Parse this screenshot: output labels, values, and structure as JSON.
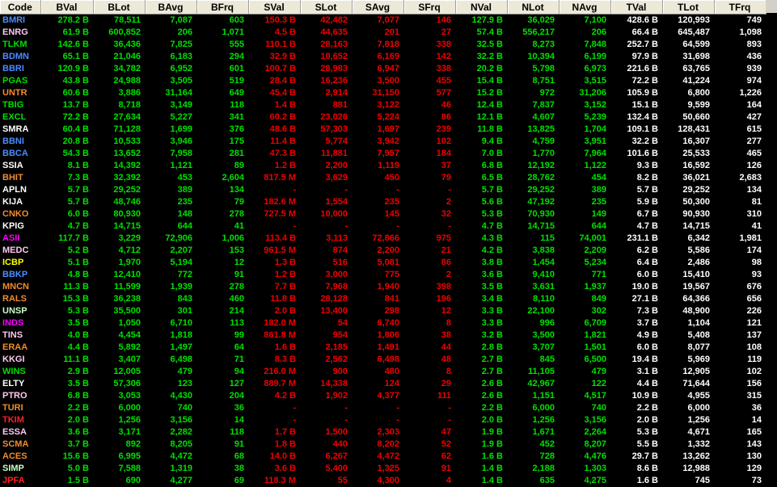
{
  "columns": [
    "Code",
    "BVal",
    "BLot",
    "BAvg",
    "BFrq",
    "SVal",
    "SLot",
    "SAvg",
    "SFrq",
    "NVal",
    "NLot",
    "NAvg",
    "TVal",
    "TLot",
    "TFrq"
  ],
  "colors": {
    "buy": "#00e000",
    "sell": "#f00000",
    "total": "#ffffff",
    "header_bg": "#ece9d8",
    "background": "#000000"
  },
  "rows": [
    {
      "code": "BMRI",
      "code_color": "#4a8cff",
      "v": [
        "278.2 B",
        "78,511",
        "7,087",
        "603",
        "150.3 B",
        "42,482",
        "7,077",
        "146",
        "127.9 B",
        "36,029",
        "7,100",
        "428.6 B",
        "120,993",
        "749"
      ]
    },
    {
      "code": "ENRG",
      "code_color": "#ffc8f0",
      "v": [
        "61.9 B",
        "600,852",
        "206",
        "1,071",
        "4.5 B",
        "44,635",
        "201",
        "27",
        "57.4 B",
        "556,217",
        "206",
        "66.4 B",
        "645,487",
        "1,098"
      ]
    },
    {
      "code": "TLKM",
      "code_color": "#00e000",
      "v": [
        "142.6 B",
        "36,436",
        "7,825",
        "555",
        "110.1 B",
        "28,163",
        "7,818",
        "338",
        "32.5 B",
        "8,273",
        "7,848",
        "252.7 B",
        "64,599",
        "893"
      ]
    },
    {
      "code": "BDMN",
      "code_color": "#4a8cff",
      "v": [
        "65.1 B",
        "21,046",
        "6,183",
        "294",
        "32.9 B",
        "10,652",
        "6,169",
        "142",
        "32.2 B",
        "10,394",
        "6,199",
        "97.9 B",
        "31,698",
        "436"
      ]
    },
    {
      "code": "BBRI",
      "code_color": "#4a8cff",
      "v": [
        "120.9 B",
        "34,782",
        "6,952",
        "601",
        "100.7 B",
        "28,983",
        "6,947",
        "338",
        "20.2 B",
        "5,798",
        "6,973",
        "221.6 B",
        "63,765",
        "939"
      ]
    },
    {
      "code": "PGAS",
      "code_color": "#00e000",
      "v": [
        "43.8 B",
        "24,988",
        "3,505",
        "519",
        "28.4 B",
        "16,236",
        "3,500",
        "455",
        "15.4 B",
        "8,751",
        "3,515",
        "72.2 B",
        "41,224",
        "974"
      ]
    },
    {
      "code": "UNTR",
      "code_color": "#f08c30",
      "v": [
        "60.6 B",
        "3,886",
        "31,164",
        "649",
        "45.4 B",
        "2,914",
        "31,150",
        "577",
        "15.2 B",
        "972",
        "31,206",
        "105.9 B",
        "6,800",
        "1,226"
      ]
    },
    {
      "code": "TBIG",
      "code_color": "#00e000",
      "v": [
        "13.7 B",
        "8,718",
        "3,149",
        "118",
        "1.4 B",
        "881",
        "3,122",
        "46",
        "12.4 B",
        "7,837",
        "3,152",
        "15.1 B",
        "9,599",
        "164"
      ]
    },
    {
      "code": "EXCL",
      "code_color": "#00e000",
      "v": [
        "72.2 B",
        "27,634",
        "5,227",
        "341",
        "60.2 B",
        "23,026",
        "5,224",
        "86",
        "12.1 B",
        "4,607",
        "5,239",
        "132.4 B",
        "50,660",
        "427"
      ]
    },
    {
      "code": "SMRA",
      "code_color": "#ffffff",
      "v": [
        "60.4 B",
        "71,128",
        "1,699",
        "376",
        "48.6 B",
        "57,303",
        "1,697",
        "239",
        "11.8 B",
        "13,825",
        "1,704",
        "109.1 B",
        "128,431",
        "615"
      ]
    },
    {
      "code": "BBNI",
      "code_color": "#4a8cff",
      "v": [
        "20.8 B",
        "10,533",
        "3,946",
        "175",
        "11.4 B",
        "5,774",
        "3,942",
        "102",
        "9.4 B",
        "4,759",
        "3,951",
        "32.2 B",
        "16,307",
        "277"
      ]
    },
    {
      "code": "BBCA",
      "code_color": "#4a8cff",
      "v": [
        "54.3 B",
        "13,652",
        "7,958",
        "281",
        "47.3 B",
        "11,881",
        "7,957",
        "184",
        "7.0 B",
        "1,770",
        "7,964",
        "101.6 B",
        "25,533",
        "465"
      ]
    },
    {
      "code": "SSIA",
      "code_color": "#ffffff",
      "v": [
        "8.1 B",
        "14,392",
        "1,121",
        "89",
        "1.2 B",
        "2,200",
        "1,119",
        "37",
        "6.8 B",
        "12,192",
        "1,122",
        "9.3 B",
        "16,592",
        "126"
      ]
    },
    {
      "code": "BHIT",
      "code_color": "#f08c30",
      "v": [
        "7.3 B",
        "32,392",
        "453",
        "2,604",
        "817.5 M",
        "3,629",
        "450",
        "79",
        "6.5 B",
        "28,762",
        "454",
        "8.2 B",
        "36,021",
        "2,683"
      ]
    },
    {
      "code": "APLN",
      "code_color": "#ffffff",
      "v": [
        "5.7 B",
        "29,252",
        "389",
        "134",
        "-",
        "-",
        "-",
        "-",
        "5.7 B",
        "29,252",
        "389",
        "5.7 B",
        "29,252",
        "134"
      ]
    },
    {
      "code": "KIJA",
      "code_color": "#ffffff",
      "v": [
        "5.7 B",
        "48,746",
        "235",
        "79",
        "182.6 M",
        "1,554",
        "235",
        "2",
        "5.6 B",
        "47,192",
        "235",
        "5.9 B",
        "50,300",
        "81"
      ]
    },
    {
      "code": "CNKO",
      "code_color": "#f08c30",
      "v": [
        "6.0 B",
        "80,930",
        "148",
        "278",
        "727.5 M",
        "10,000",
        "145",
        "32",
        "5.3 B",
        "70,930",
        "149",
        "6.7 B",
        "90,930",
        "310"
      ]
    },
    {
      "code": "KPIG",
      "code_color": "#ffffff",
      "v": [
        "4.7 B",
        "14,715",
        "644",
        "41",
        "-",
        "-",
        "-",
        "-",
        "4.7 B",
        "14,715",
        "644",
        "4.7 B",
        "14,715",
        "41"
      ]
    },
    {
      "code": "ASII",
      "code_color": "#ff00ff",
      "v": [
        "117.7 B",
        "3,229",
        "72,906",
        "1,006",
        "113.4 B",
        "3,113",
        "72,866",
        "975",
        "4.3 B",
        "115",
        "74,001",
        "231.1 B",
        "6,342",
        "1,981"
      ]
    },
    {
      "code": "MEDC",
      "code_color": "#ffc8f0",
      "v": [
        "5.2 B",
        "4,712",
        "2,207",
        "153",
        "961.5 M",
        "874",
        "2,200",
        "21",
        "4.2 B",
        "3,838",
        "2,209",
        "6.2 B",
        "5,586",
        "174"
      ]
    },
    {
      "code": "ICBP",
      "code_color": "#ffff00",
      "v": [
        "5.1 B",
        "1,970",
        "5,194",
        "12",
        "1.3 B",
        "516",
        "5,081",
        "86",
        "3.8 B",
        "1,454",
        "5,234",
        "6.4 B",
        "2,486",
        "98"
      ]
    },
    {
      "code": "BBKP",
      "code_color": "#4a8cff",
      "v": [
        "4.8 B",
        "12,410",
        "772",
        "91",
        "1.2 B",
        "3,000",
        "775",
        "2",
        "3.6 B",
        "9,410",
        "771",
        "6.0 B",
        "15,410",
        "93"
      ]
    },
    {
      "code": "MNCN",
      "code_color": "#f08c30",
      "v": [
        "11.3 B",
        "11,599",
        "1,939",
        "278",
        "7.7 B",
        "7,968",
        "1,940",
        "398",
        "3.5 B",
        "3,631",
        "1,937",
        "19.0 B",
        "19,567",
        "676"
      ]
    },
    {
      "code": "RALS",
      "code_color": "#f08c30",
      "v": [
        "15.3 B",
        "36,238",
        "843",
        "460",
        "11.8 B",
        "28,128",
        "841",
        "196",
        "3.4 B",
        "8,110",
        "849",
        "27.1 B",
        "64,366",
        "656"
      ]
    },
    {
      "code": "UNSP",
      "code_color": "#c8ffc8",
      "v": [
        "5.3 B",
        "35,500",
        "301",
        "214",
        "2.0 B",
        "13,400",
        "298",
        "12",
        "3.3 B",
        "22,100",
        "302",
        "7.3 B",
        "48,900",
        "226"
      ]
    },
    {
      "code": "INDS",
      "code_color": "#ff00ff",
      "v": [
        "3.5 B",
        "1,050",
        "6,710",
        "113",
        "182.0 M",
        "54",
        "6,740",
        "8",
        "3.3 B",
        "996",
        "6,709",
        "3.7 B",
        "1,104",
        "121"
      ]
    },
    {
      "code": "TINS",
      "code_color": "#ffc8f0",
      "v": [
        "4.0 B",
        "4,454",
        "1,818",
        "99",
        "861.8 M",
        "954",
        "1,806",
        "38",
        "3.2 B",
        "3,500",
        "1,821",
        "4.9 B",
        "5,408",
        "137"
      ]
    },
    {
      "code": "ERAA",
      "code_color": "#f08c30",
      "v": [
        "4.4 B",
        "5,892",
        "1,497",
        "64",
        "1.6 B",
        "2,185",
        "1,491",
        "44",
        "2.8 B",
        "3,707",
        "1,501",
        "6.0 B",
        "8,077",
        "108"
      ]
    },
    {
      "code": "KKGI",
      "code_color": "#ffc8f0",
      "v": [
        "11.1 B",
        "3,407",
        "6,498",
        "71",
        "8.3 B",
        "2,562",
        "6,498",
        "48",
        "2.7 B",
        "845",
        "6,500",
        "19.4 B",
        "5,969",
        "119"
      ]
    },
    {
      "code": "WINS",
      "code_color": "#00e000",
      "v": [
        "2.9 B",
        "12,005",
        "479",
        "94",
        "216.0 M",
        "900",
        "480",
        "8",
        "2.7 B",
        "11,105",
        "479",
        "3.1 B",
        "12,905",
        "102"
      ]
    },
    {
      "code": "ELTY",
      "code_color": "#ffffff",
      "v": [
        "3.5 B",
        "57,306",
        "123",
        "127",
        "889.7 M",
        "14,338",
        "124",
        "29",
        "2.6 B",
        "42,967",
        "122",
        "4.4 B",
        "71,644",
        "156"
      ]
    },
    {
      "code": "PTRO",
      "code_color": "#ffc8f0",
      "v": [
        "6.8 B",
        "3,053",
        "4,430",
        "204",
        "4.2 B",
        "1,902",
        "4,377",
        "111",
        "2.6 B",
        "1,151",
        "4,517",
        "10.9 B",
        "4,955",
        "315"
      ]
    },
    {
      "code": "TURI",
      "code_color": "#f08c30",
      "v": [
        "2.2 B",
        "6,000",
        "740",
        "36",
        "-",
        "-",
        "-",
        "-",
        "2.2 B",
        "6,000",
        "740",
        "2.2 B",
        "6,000",
        "36"
      ]
    },
    {
      "code": "TKIM",
      "code_color": "#ff2020",
      "v": [
        "2.0 B",
        "1,256",
        "3,156",
        "14",
        "-",
        "-",
        "-",
        "-",
        "2.0 B",
        "1,256",
        "3,156",
        "2.0 B",
        "1,256",
        "14"
      ]
    },
    {
      "code": "ESSA",
      "code_color": "#ffc8f0",
      "v": [
        "3.6 B",
        "3,171",
        "2,282",
        "118",
        "1.7 B",
        "1,500",
        "2,303",
        "47",
        "1.9 B",
        "1,671",
        "2,264",
        "5.3 B",
        "4,671",
        "165"
      ]
    },
    {
      "code": "SCMA",
      "code_color": "#f08c30",
      "v": [
        "3.7 B",
        "892",
        "8,205",
        "91",
        "1.8 B",
        "440",
        "8,202",
        "52",
        "1.9 B",
        "452",
        "8,207",
        "5.5 B",
        "1,332",
        "143"
      ]
    },
    {
      "code": "ACES",
      "code_color": "#f08c30",
      "v": [
        "15.6 B",
        "6,995",
        "4,472",
        "68",
        "14.0 B",
        "6,267",
        "4,472",
        "62",
        "1.6 B",
        "728",
        "4,476",
        "29.7 B",
        "13,262",
        "130"
      ]
    },
    {
      "code": "SIMP",
      "code_color": "#c8ffc8",
      "v": [
        "5.0 B",
        "7,588",
        "1,319",
        "38",
        "3.6 B",
        "5,400",
        "1,325",
        "91",
        "1.4 B",
        "2,188",
        "1,303",
        "8.6 B",
        "12,988",
        "129"
      ]
    },
    {
      "code": "JPFA",
      "code_color": "#ff2020",
      "v": [
        "1.5 B",
        "690",
        "4,277",
        "69",
        "118.3 M",
        "55",
        "4,300",
        "4",
        "1.4 B",
        "635",
        "4,275",
        "1.6 B",
        "745",
        "73"
      ]
    }
  ]
}
